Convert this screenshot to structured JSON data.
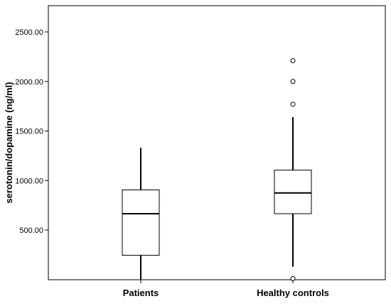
{
  "chart_data": {
    "type": "box",
    "ylabel": "serotonin/dopamine (ng/ml)",
    "xlabel": "",
    "title": "",
    "ylim": [
      0,
      2700
    ],
    "yticks": [
      500,
      1000,
      1500,
      2000,
      2500
    ],
    "ytick_labels": [
      "500.00",
      "1000.00",
      "1500.00",
      "2000.00",
      "2500.00"
    ],
    "categories": [
      "Patients",
      "Healthy controls"
    ],
    "boxes": [
      {
        "category": "Patients",
        "whisker_low": 0,
        "q1": 245,
        "median": 665,
        "q3": 905,
        "whisker_high": 1330,
        "outliers": []
      },
      {
        "category": "Healthy controls",
        "whisker_low": 130,
        "q1": 665,
        "median": 875,
        "q3": 1105,
        "whisker_high": 1640,
        "outliers": [
          10,
          1770,
          2000,
          2210
        ]
      }
    ],
    "grid": false,
    "colors": {
      "box_fill": "#ffffff",
      "box_stroke": "#000000"
    }
  }
}
